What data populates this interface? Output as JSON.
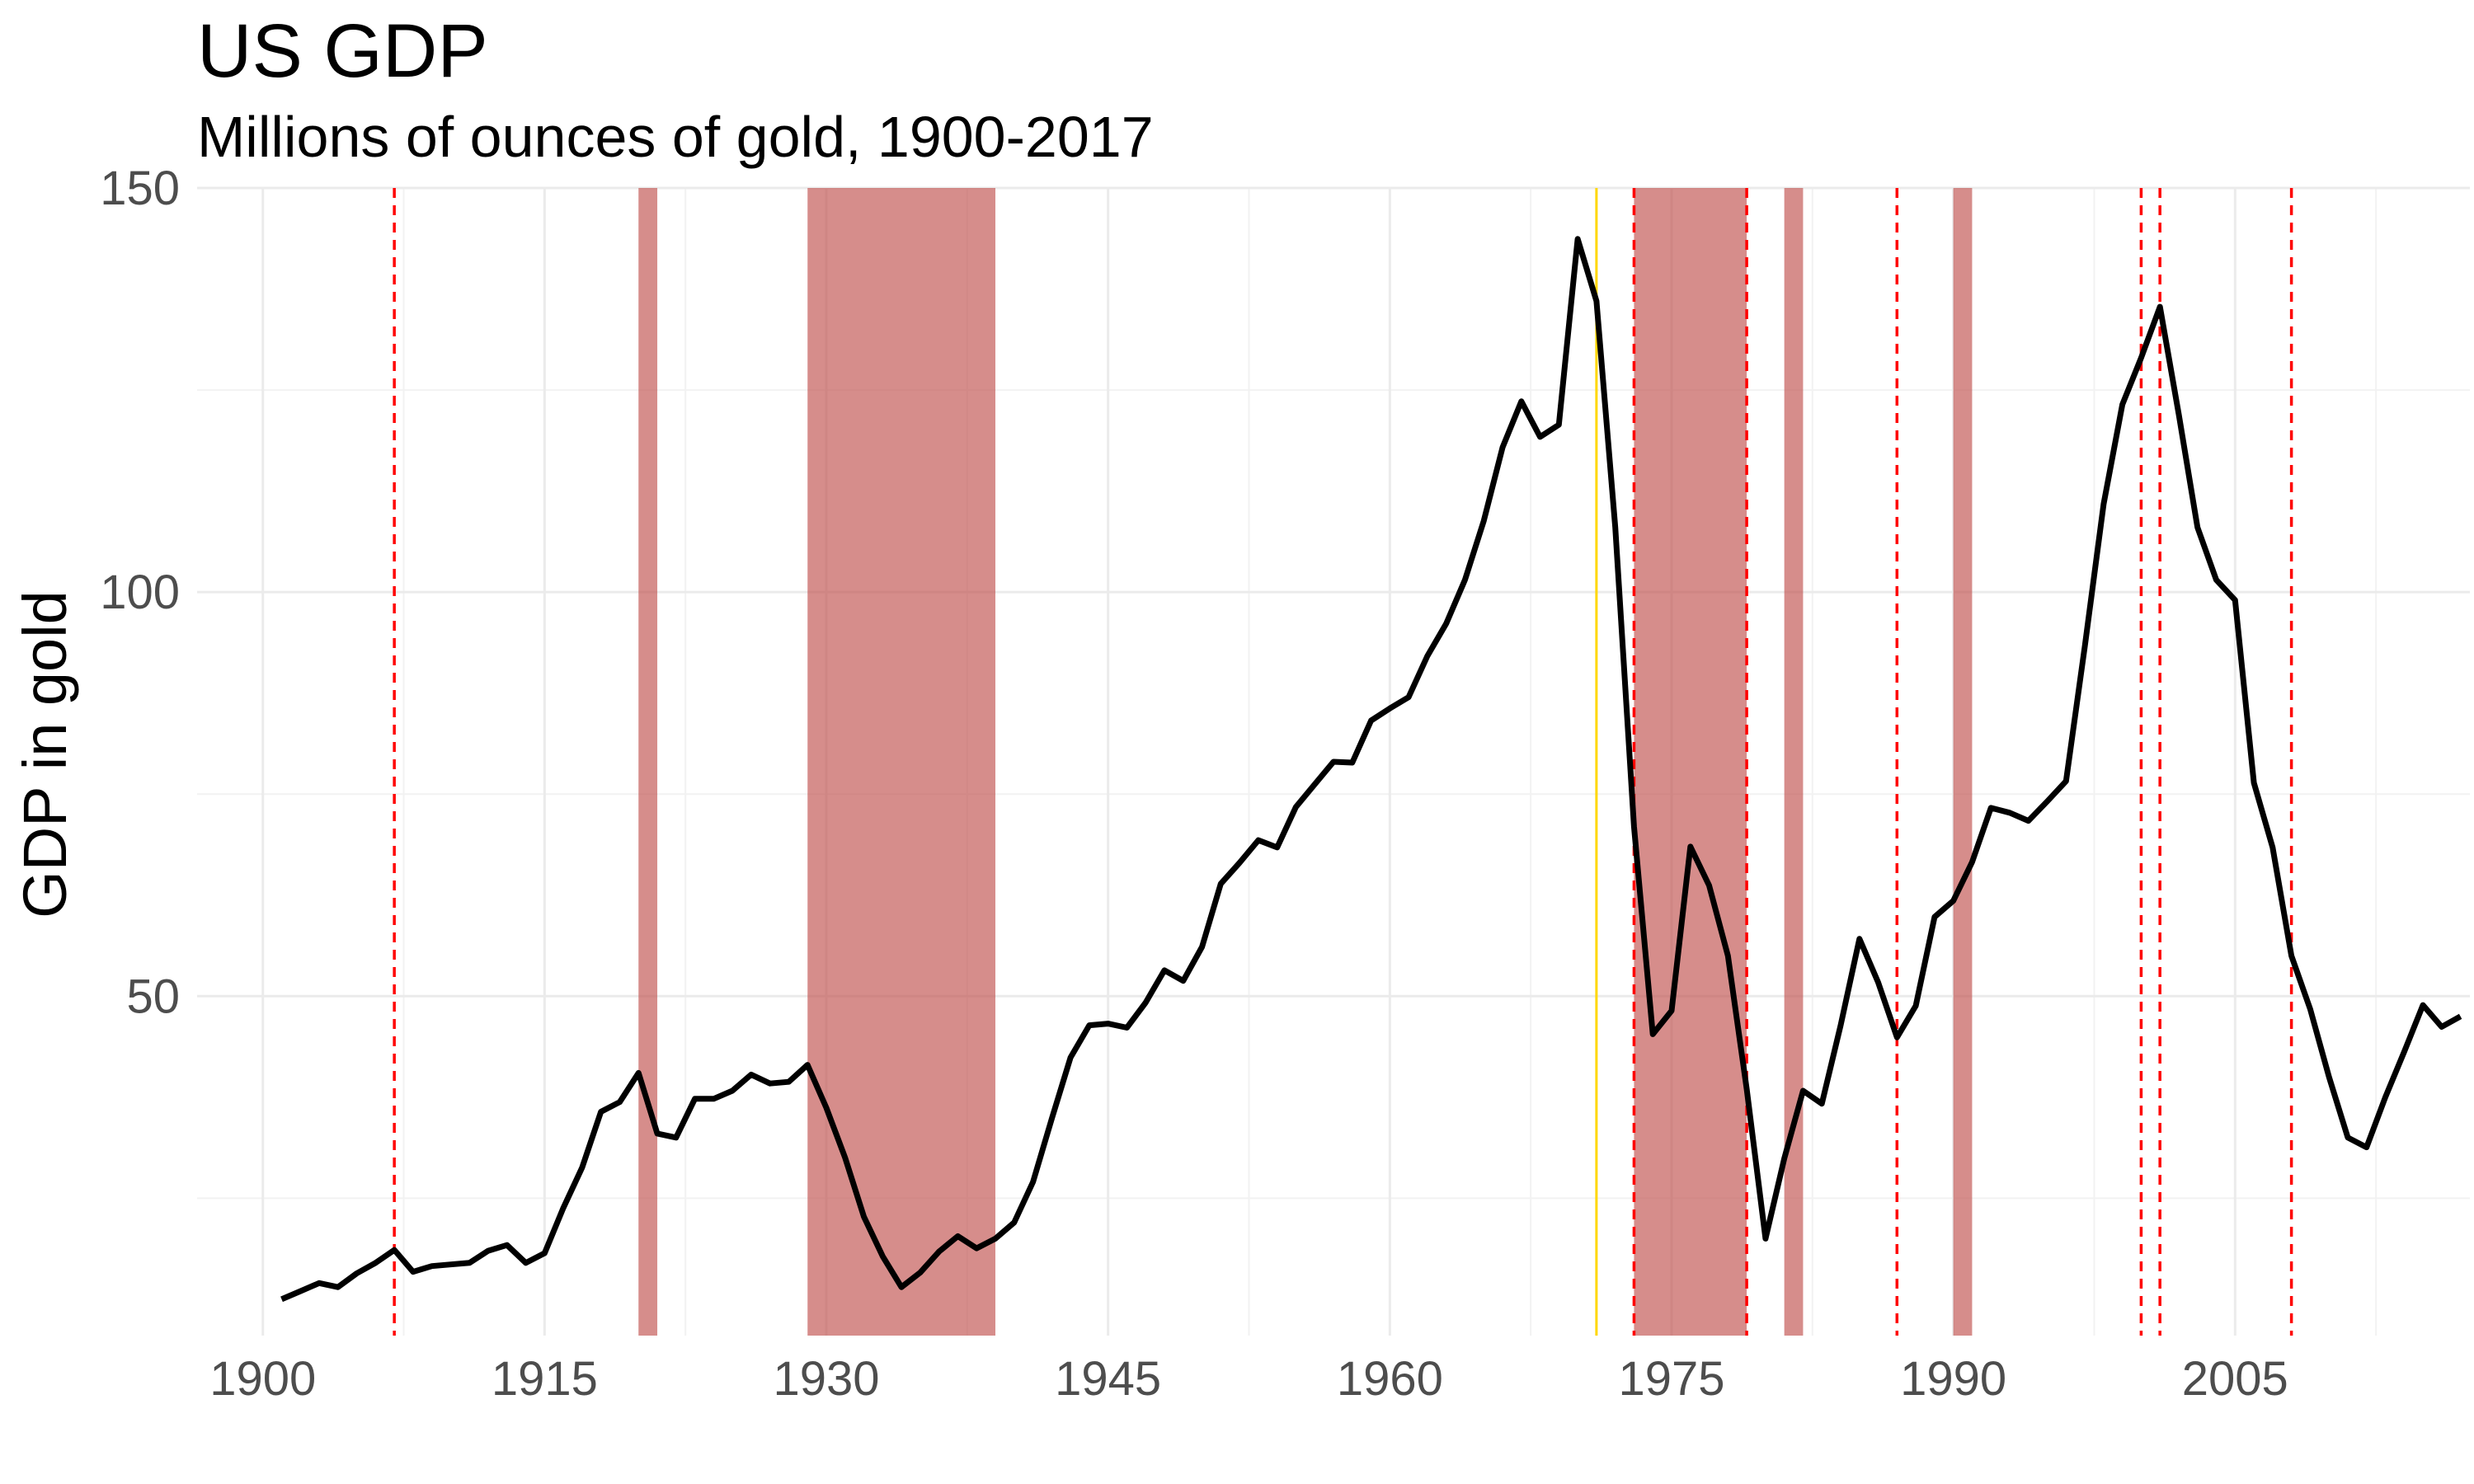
{
  "chart_data": {
    "type": "line",
    "title": "US GDP",
    "subtitle": "Millions of ounces of gold, 1900-2017",
    "xlabel": "",
    "ylabel": "GDP in gold",
    "xlim": [
      1896.5,
      2017.5
    ],
    "ylim": [
      8,
      150
    ],
    "x_ticks": [
      1900,
      1915,
      1930,
      1945,
      1960,
      1975,
      1990,
      2005
    ],
    "y_ticks": [
      50,
      100,
      150
    ],
    "grid": true,
    "legend": "none",
    "colors": {
      "line": "#000000",
      "recession_fill": "#c0504d",
      "event_line": "#ff0000",
      "gold_line": "#ffd700",
      "grid": "#ebebeb",
      "tick_text": "#4d4d4d"
    },
    "series": [
      {
        "x": [
          1901,
          1902,
          1903,
          1904,
          1905,
          1906,
          1907,
          1908,
          1909,
          1910,
          1911,
          1912,
          1913,
          1914,
          1915,
          1916,
          1917,
          1918,
          1919,
          1920,
          1921,
          1922,
          1923,
          1924,
          1925,
          1926,
          1927,
          1928,
          1929,
          1930,
          1931,
          1932,
          1933,
          1934,
          1935,
          1936,
          1937,
          1938,
          1939,
          1940,
          1941,
          1942,
          1943,
          1944,
          1945,
          1946,
          1947,
          1948,
          1949,
          1950,
          1951,
          1952,
          1953,
          1954,
          1955,
          1956,
          1957,
          1958,
          1959,
          1960,
          1961,
          1962,
          1963,
          1964,
          1965,
          1966,
          1967,
          1968,
          1969,
          1970,
          1971,
          1972,
          1973,
          1974,
          1975,
          1976,
          1977,
          1978,
          1979,
          1980,
          1981,
          1982,
          1983,
          1984,
          1985,
          1986,
          1987,
          1988,
          1989,
          1990,
          1991,
          1992,
          1993,
          1994,
          1995,
          1996,
          1997,
          1998,
          1999,
          2000,
          2001,
          2002,
          2003,
          2004,
          2005,
          2006,
          2007,
          2008,
          2009,
          2010,
          2011,
          2012,
          2013,
          2014,
          2015,
          2016,
          2017
        ],
        "values": [
          12.5,
          13.5,
          14.5,
          14.0,
          15.7,
          17.0,
          18.6,
          15.9,
          16.6,
          16.8,
          17.0,
          18.5,
          19.2,
          17.0,
          18.2,
          23.8,
          28.8,
          35.7,
          36.9,
          40.5,
          33.0,
          32.5,
          37.3,
          37.3,
          38.3,
          40.3,
          39.2,
          39.4,
          41.5,
          36.2,
          30.0,
          22.7,
          17.8,
          14.0,
          15.8,
          18.4,
          20.3,
          18.8,
          20.0,
          22.0,
          27.0,
          34.8,
          42.4,
          46.4,
          46.6,
          46.1,
          49.2,
          53.2,
          51.9,
          56.1,
          63.9,
          66.5,
          69.3,
          68.4,
          73.4,
          76.2,
          79.0,
          78.9,
          84.1,
          85.6,
          87.0,
          92.1,
          96.1,
          101.5,
          108.8,
          117.9,
          123.6,
          119.2,
          120.7,
          143.7,
          136.0,
          108.0,
          71.0,
          45.3,
          48.2,
          68.5,
          63.7,
          55.0,
          38.5,
          20.0,
          29.9,
          38.3,
          36.7,
          46.4,
          57.1,
          51.7,
          44.9,
          48.8,
          59.8,
          61.8,
          66.6,
          73.3,
          72.7,
          71.7,
          74.1,
          76.6,
          93.3,
          110.9,
          123.2,
          129.0,
          135.3,
          122.0,
          108.0,
          101.5,
          99.0,
          76.4,
          68.4,
          55.0,
          48.4,
          40.0,
          32.5,
          31.3,
          37.5,
          43.1,
          48.9,
          46.2,
          47.5
        ]
      }
    ],
    "recession_bands": [
      [
        1920,
        1921
      ],
      [
        1929,
        1939
      ],
      [
        1973,
        1979
      ],
      [
        1981,
        1982
      ],
      [
        1990,
        1991
      ]
    ],
    "event_lines": [
      1907,
      1973,
      1979,
      1987,
      2000,
      2001,
      2008
    ],
    "gold_line": 1971
  }
}
